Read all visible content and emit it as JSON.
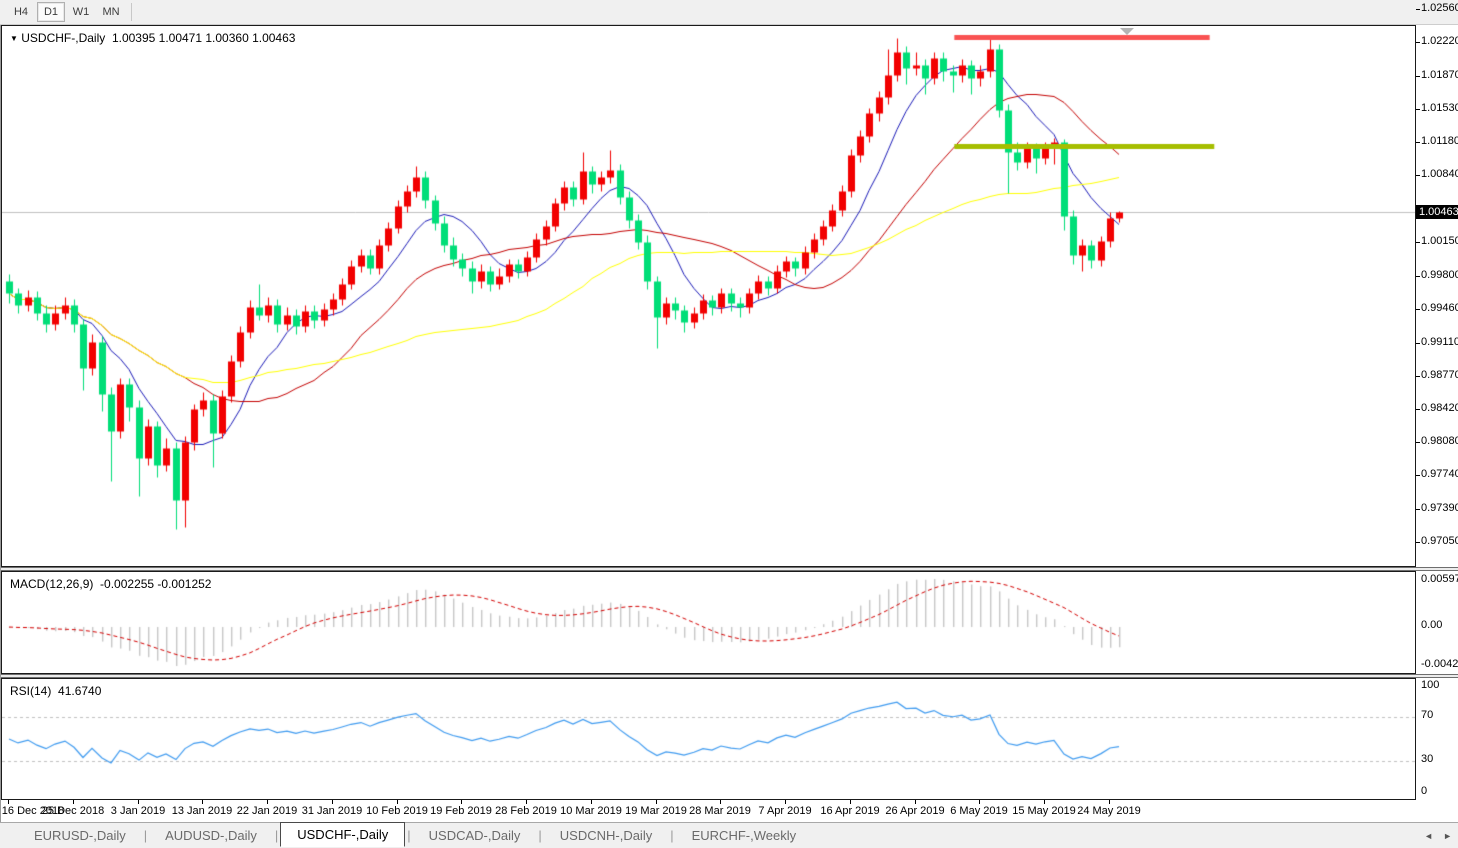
{
  "toolbar": {
    "periods": [
      {
        "label": "H4",
        "active": false
      },
      {
        "label": "D1",
        "active": true
      },
      {
        "label": "W1",
        "active": false
      },
      {
        "label": "MN",
        "active": false
      }
    ]
  },
  "chart": {
    "title_symbol": "USDCHF-,Daily",
    "title_ohlc": "1.00395 1.00471 1.00360 1.00463",
    "current_price": "1.00463",
    "price_axis_labels": [
      "1.02560",
      "1.02220",
      "1.01870",
      "1.01530",
      "1.01180",
      "1.00840",
      "1.00150",
      "0.99800",
      "0.99460",
      "0.99110",
      "0.98770",
      "0.98420",
      "0.98080",
      "0.97740",
      "0.97390",
      "0.97050"
    ]
  },
  "macd": {
    "label": "MACD(12,26,9)",
    "values": "-0.002255 -0.001252",
    "axis_top": "0.00597",
    "axis_zero": "0.00",
    "axis_bottom": "-0.00424",
    "fast": 12,
    "slow": 26,
    "signal": 9
  },
  "rsi": {
    "label": "RSI(14)",
    "value": "41.6740",
    "axis_top": "100",
    "axis_bottom": "0",
    "levels": [
      70,
      30
    ],
    "period": 14
  },
  "date_axis": {
    "bar_step": 7,
    "labels": [
      "16 Dec 2018",
      "25 Dec 2018",
      "3 Jan 2019",
      "13 Jan 2019",
      "22 Jan 2019",
      "31 Jan 2019",
      "10 Feb 2019",
      "19 Feb 2019",
      "28 Feb 2019",
      "10 Mar 2019",
      "19 Mar 2019",
      "28 Mar 2019",
      "7 Apr 2019",
      "16 Apr 2019",
      "26 Apr 2019",
      "6 May 2019",
      "15 May 2019",
      "24 May 2019"
    ]
  },
  "tabs": [
    {
      "label": "EURUSD-,Daily",
      "active": false
    },
    {
      "label": "AUDUSD-,Daily",
      "active": false
    },
    {
      "label": "USDCHF-,Daily",
      "active": true
    },
    {
      "label": "USDCAD-,Daily",
      "active": false
    },
    {
      "label": "USDCNH-,Daily",
      "active": false
    },
    {
      "label": "EURCHF-,Weekly",
      "active": false
    }
  ],
  "tab_scroll": {
    "left": "◄",
    "right": "►"
  },
  "colors": {
    "bull": "#f20000",
    "bear": "#00de78",
    "ma_fast": "#1a1ab8",
    "ma_mid": "#c40000",
    "ma_slow": "#ffff00",
    "macd_hist": "#c8c8c8",
    "macd_signal": "#d40000",
    "rsi_line": "#3f9bf0",
    "level_dash": "#c0c0c0",
    "price_line": "#c0c0c0",
    "resistance": "#f95252",
    "support": "#a6be00",
    "tag_bg": "#000000"
  },
  "chart_data": {
    "type": "candlestick",
    "symbol": "USDCHF",
    "timeframe": "Daily",
    "title": "USDCHF-,Daily 1.00395 1.00471 1.00360 1.00463",
    "price_axis": {
      "min": 0.9705,
      "max": 1.0256,
      "step": 0.0035
    },
    "candles": [
      [
        0.9975,
        0.9982,
        0.9952,
        0.9962
      ],
      [
        0.9962,
        0.9968,
        0.9942,
        0.995
      ],
      [
        0.995,
        0.9965,
        0.9944,
        0.9958
      ],
      [
        0.9958,
        0.9964,
        0.9934,
        0.9942
      ],
      [
        0.9942,
        0.995,
        0.9922,
        0.993
      ],
      [
        0.993,
        0.995,
        0.9924,
        0.9942
      ],
      [
        0.9942,
        0.9958,
        0.9936,
        0.995
      ],
      [
        0.995,
        0.9956,
        0.9922,
        0.993
      ],
      [
        0.993,
        0.9936,
        0.9862,
        0.9885
      ],
      [
        0.9885,
        0.992,
        0.9878,
        0.9912
      ],
      [
        0.9912,
        0.9918,
        0.984,
        0.9858
      ],
      [
        0.9858,
        0.9865,
        0.9768,
        0.982
      ],
      [
        0.982,
        0.9875,
        0.9812,
        0.9868
      ],
      [
        0.9868,
        0.9874,
        0.983,
        0.9845
      ],
      [
        0.9845,
        0.9852,
        0.9752,
        0.9792
      ],
      [
        0.9792,
        0.9832,
        0.9785,
        0.9825
      ],
      [
        0.9825,
        0.983,
        0.9772,
        0.9785
      ],
      [
        0.9785,
        0.9812,
        0.9778,
        0.9802
      ],
      [
        0.9802,
        0.9808,
        0.9718,
        0.9748
      ],
      [
        0.9748,
        0.9815,
        0.972,
        0.9808
      ],
      [
        0.9808,
        0.9848,
        0.98,
        0.9842
      ],
      [
        0.9842,
        0.986,
        0.9835,
        0.9852
      ],
      [
        0.9852,
        0.9858,
        0.9782,
        0.9818
      ],
      [
        0.9818,
        0.9862,
        0.9812,
        0.9856
      ],
      [
        0.9856,
        0.9898,
        0.985,
        0.9892
      ],
      [
        0.9892,
        0.9928,
        0.9886,
        0.9922
      ],
      [
        0.9922,
        0.9955,
        0.9916,
        0.9948
      ],
      [
        0.9948,
        0.9972,
        0.9934,
        0.994
      ],
      [
        0.994,
        0.9958,
        0.9932,
        0.995
      ],
      [
        0.995,
        0.9956,
        0.9922,
        0.993
      ],
      [
        0.993,
        0.9948,
        0.9924,
        0.994
      ],
      [
        0.994,
        0.9946,
        0.992,
        0.9928
      ],
      [
        0.9928,
        0.995,
        0.9922,
        0.9944
      ],
      [
        0.9944,
        0.995,
        0.9926,
        0.9934
      ],
      [
        0.9934,
        0.9952,
        0.9928,
        0.9946
      ],
      [
        0.9946,
        0.9962,
        0.994,
        0.9956
      ],
      [
        0.9956,
        0.9978,
        0.995,
        0.9972
      ],
      [
        0.9972,
        0.9996,
        0.9966,
        0.999
      ],
      [
        0.999,
        1.0008,
        0.9984,
        1.0002
      ],
      [
        1.0002,
        1.0008,
        0.9982,
        0.9988
      ],
      [
        0.9988,
        1.0018,
        0.9982,
        1.0012
      ],
      [
        1.0012,
        1.0036,
        1.0006,
        1.003
      ],
      [
        1.003,
        1.0058,
        1.0024,
        1.0052
      ],
      [
        1.0052,
        1.0074,
        1.0046,
        1.0068
      ],
      [
        1.0068,
        1.0094,
        1.0062,
        1.0082
      ],
      [
        1.0082,
        1.0088,
        1.005,
        1.0058
      ],
      [
        1.0058,
        1.0064,
        1.0028,
        1.0035
      ],
      [
        1.0035,
        1.0042,
        1.0005,
        1.0012
      ],
      [
        1.0012,
        1.002,
        0.999,
        0.9998
      ],
      [
        0.9998,
        1.0004,
        0.998,
        0.9988
      ],
      [
        0.9988,
        0.9995,
        0.9962,
        0.9975
      ],
      [
        0.9975,
        0.9992,
        0.9968,
        0.9985
      ],
      [
        0.9985,
        0.999,
        0.9964,
        0.9972
      ],
      [
        0.9972,
        0.9988,
        0.9966,
        0.998
      ],
      [
        0.998,
        0.9998,
        0.9974,
        0.9992
      ],
      [
        0.9992,
        0.9998,
        0.9978,
        0.9985
      ],
      [
        0.9985,
        1.0006,
        0.998,
        1.0
      ],
      [
        1.0,
        1.0024,
        0.9994,
        1.0018
      ],
      [
        1.0018,
        1.0038,
        1.0012,
        1.0032
      ],
      [
        1.0032,
        1.0061,
        1.0026,
        1.0055
      ],
      [
        1.0055,
        1.0078,
        1.0048,
        1.0072
      ],
      [
        1.0072,
        1.0078,
        1.0052,
        1.006
      ],
      [
        1.006,
        1.0108,
        1.0054,
        1.0088
      ],
      [
        1.0088,
        1.0094,
        1.0066,
        1.0075
      ],
      [
        1.0075,
        1.0088,
        1.0068,
        1.0082
      ],
      [
        1.0082,
        1.011,
        1.0076,
        1.009
      ],
      [
        1.009,
        1.0096,
        1.0054,
        1.0062
      ],
      [
        1.0062,
        1.0068,
        1.003,
        1.0038
      ],
      [
        1.0038,
        1.0044,
        1.0008,
        1.0015
      ],
      [
        1.0015,
        1.0022,
        0.9966,
        0.9975
      ],
      [
        0.9975,
        0.998,
        0.9906,
        0.9938
      ],
      [
        0.9938,
        0.9958,
        0.993,
        0.9952
      ],
      [
        0.9952,
        0.9958,
        0.9936,
        0.9945
      ],
      [
        0.9945,
        0.995,
        0.9922,
        0.9932
      ],
      [
        0.9932,
        0.9948,
        0.9926,
        0.9942
      ],
      [
        0.9942,
        0.9961,
        0.9936,
        0.9955
      ],
      [
        0.9955,
        0.996,
        0.994,
        0.9948
      ],
      [
        0.9948,
        0.9968,
        0.9942,
        0.9962
      ],
      [
        0.9962,
        0.9968,
        0.9944,
        0.9952
      ],
      [
        0.9952,
        0.9958,
        0.9938,
        0.9948
      ],
      [
        0.9948,
        0.9968,
        0.9942,
        0.9962
      ],
      [
        0.9962,
        0.9981,
        0.9956,
        0.9975
      ],
      [
        0.9975,
        0.998,
        0.996,
        0.9968
      ],
      [
        0.9968,
        0.9991,
        0.9962,
        0.9985
      ],
      [
        0.9985,
        1.0001,
        0.9979,
        0.9995
      ],
      [
        0.9995,
        1.0,
        0.998,
        0.9988
      ],
      [
        0.9988,
        1.0011,
        0.9982,
        1.0005
      ],
      [
        1.0005,
        1.0024,
        0.9999,
        1.0018
      ],
      [
        1.0018,
        1.0038,
        1.0012,
        1.0032
      ],
      [
        1.0032,
        1.0054,
        1.0026,
        1.0048
      ],
      [
        1.0048,
        1.0074,
        1.0042,
        1.0068
      ],
      [
        1.0068,
        1.0111,
        1.0062,
        1.0105
      ],
      [
        1.0105,
        1.0131,
        1.0098,
        1.0125
      ],
      [
        1.0125,
        1.0154,
        1.0118,
        1.0148
      ],
      [
        1.0148,
        1.0171,
        1.014,
        1.0165
      ],
      [
        1.0165,
        1.0215,
        1.0158,
        1.0188
      ],
      [
        1.0188,
        1.0226,
        1.0182,
        1.0212
      ],
      [
        1.0212,
        1.0218,
        1.0178,
        1.0195
      ],
      [
        1.0195,
        1.0212,
        1.0188,
        1.0198
      ],
      [
        1.0198,
        1.0204,
        1.0168,
        1.0185
      ],
      [
        1.0185,
        1.0211,
        1.0178,
        1.0205
      ],
      [
        1.0205,
        1.0211,
        1.0182,
        1.0192
      ],
      [
        1.0192,
        1.0198,
        1.017,
        1.0188
      ],
      [
        1.0188,
        1.0204,
        1.018,
        1.0198
      ],
      [
        1.0198,
        1.0203,
        1.0168,
        1.0185
      ],
      [
        1.0185,
        1.0198,
        1.0176,
        1.0192
      ],
      [
        1.0192,
        1.0226,
        1.0186,
        1.0215
      ],
      [
        1.0215,
        1.022,
        1.0144,
        1.0152
      ],
      [
        1.0152,
        1.0158,
        1.0066,
        1.0108
      ],
      [
        1.0108,
        1.0118,
        1.009,
        1.0098
      ],
      [
        1.0098,
        1.0118,
        1.0092,
        1.0112
      ],
      [
        1.0112,
        1.0117,
        1.0086,
        1.0102
      ],
      [
        1.0102,
        1.0118,
        1.0096,
        1.0112
      ],
      [
        1.0112,
        1.0123,
        1.0096,
        1.0118
      ],
      [
        1.0118,
        1.0122,
        1.0028,
        1.0042
      ],
      [
        1.0042,
        1.0048,
        0.9992,
        1.0002
      ],
      [
        1.0002,
        1.0018,
        0.9985,
        1.0012
      ],
      [
        1.0012,
        1.0017,
        0.9988,
        0.9996
      ],
      [
        0.9996,
        1.0021,
        0.999,
        1.0016
      ],
      [
        1.0016,
        1.0046,
        1.001,
        1.004
      ],
      [
        1.00395,
        1.00471,
        1.0036,
        1.00463
      ]
    ],
    "moving_averages": [
      {
        "name": "fast",
        "period": 8,
        "color_key": "ma_fast"
      },
      {
        "name": "mid",
        "period": 20,
        "color_key": "ma_mid"
      },
      {
        "name": "slow",
        "period": 45,
        "color_key": "ma_slow"
      }
    ],
    "horizontal_lines": [
      {
        "name": "resistance",
        "price": 1.0227,
        "from_bar": 102.2,
        "to_bar": 129.8,
        "thickness": 5,
        "color_key": "resistance"
      },
      {
        "name": "support",
        "price": 1.0114,
        "from_bar": 102.2,
        "to_bar": 130.3,
        "thickness": 5,
        "color_key": "support"
      }
    ],
    "legend_position": "none",
    "grid": false
  }
}
